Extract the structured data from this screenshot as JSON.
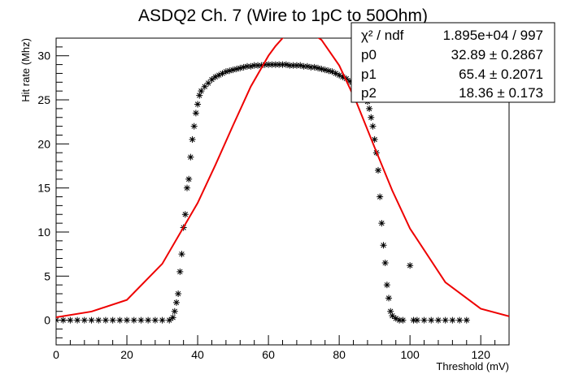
{
  "chart_data": {
    "type": "scatter",
    "title": "ASDQ2 Ch. 7 (Wire to 1pC to 50Ohm)",
    "xlabel": "Threshold (mV)",
    "ylabel": "Hit rate (Mhz)",
    "xlim": [
      0,
      128
    ],
    "ylim": [
      -2.8,
      32
    ],
    "x_ticks": [
      0,
      20,
      40,
      60,
      80,
      100,
      120
    ],
    "y_ticks": [
      0,
      5,
      10,
      15,
      20,
      25,
      30
    ],
    "grid": false,
    "marker": "asterisk",
    "colors": {
      "data": "#000000",
      "fit": "#ee0000",
      "frame": "#000000"
    },
    "series": [
      {
        "name": "Hit rate",
        "x": [
          0,
          2,
          4,
          6,
          8,
          10,
          12,
          14,
          16,
          18,
          20,
          22,
          24,
          26,
          28,
          30,
          32,
          33,
          33.5,
          34,
          34.5,
          35,
          35.5,
          36,
          36.5,
          37,
          37.5,
          38,
          38.5,
          39,
          39.5,
          40,
          40.5,
          41,
          42,
          43,
          44,
          45,
          46,
          47,
          48,
          49,
          50,
          51,
          52,
          53,
          54,
          55,
          56,
          57,
          58,
          59,
          60,
          61,
          62,
          63,
          64,
          65,
          66,
          67,
          68,
          69,
          70,
          71,
          72,
          73,
          74,
          75,
          76,
          77,
          78,
          79,
          80,
          81,
          82,
          83,
          84,
          85,
          86,
          87,
          88,
          88.5,
          89,
          89.5,
          90,
          90.5,
          91,
          91.5,
          92,
          92.5,
          93,
          93.5,
          94,
          94.5,
          95,
          96,
          97,
          98,
          100,
          101,
          102,
          104,
          106,
          108,
          110,
          112,
          114,
          116
        ],
        "y": [
          0,
          0,
          0,
          0,
          0,
          0,
          0,
          0,
          0,
          0,
          0,
          0,
          0,
          0,
          0,
          0,
          0,
          0.3,
          1,
          2,
          3,
          5.5,
          7.5,
          10.5,
          12,
          15,
          16,
          18.5,
          20.5,
          22,
          23.5,
          24.5,
          25.5,
          26,
          26.5,
          26.9,
          27.3,
          27.6,
          27.8,
          28,
          28.2,
          28.3,
          28.4,
          28.5,
          28.6,
          28.7,
          28.8,
          28.8,
          28.9,
          28.9,
          28.9,
          29,
          29,
          29,
          29,
          29,
          29,
          29,
          28.9,
          28.9,
          28.9,
          28.9,
          28.8,
          28.8,
          28.7,
          28.7,
          28.6,
          28.5,
          28.4,
          28.3,
          28.2,
          28,
          27.8,
          27.6,
          27.4,
          27.1,
          26.8,
          26.4,
          26,
          25.5,
          24.8,
          24,
          23,
          22,
          20.5,
          19,
          17,
          14,
          11,
          8.5,
          6.5,
          4,
          2.5,
          1,
          0.5,
          0.2,
          0,
          0,
          6.2,
          0,
          0,
          0,
          0,
          0,
          0,
          0,
          0,
          0
        ]
      }
    ],
    "fit": {
      "function": "gaus",
      "x": [
        0,
        10,
        20,
        30,
        40,
        45,
        50,
        55,
        60,
        62,
        64,
        66,
        68,
        70,
        72,
        75,
        80,
        85,
        90,
        95,
        100,
        110,
        120,
        128
      ],
      "y": [
        0.33,
        0.98,
        2.3,
        6.4,
        13.3,
        17.6,
        22.1,
        26.5,
        30.0,
        31.1,
        32.0,
        32.6,
        32.9,
        32.9,
        32.6,
        31.8,
        28.9,
        24.6,
        19.6,
        14.7,
        10.4,
        4.3,
        1.3,
        0.44
      ]
    },
    "stats": {
      "rows": [
        {
          "label": "χ² / ndf",
          "value": "1.895e+04 / 997"
        },
        {
          "label": "p0",
          "value": "32.89 ± 0.2867"
        },
        {
          "label": "p1",
          "value": "65.4 ± 0.2071"
        },
        {
          "label": "p2",
          "value": "18.36 ± 0.173"
        }
      ]
    }
  }
}
